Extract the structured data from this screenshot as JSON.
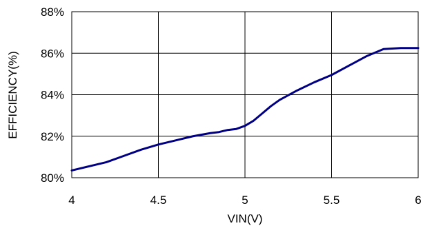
{
  "chart_data": {
    "type": "line",
    "title": "",
    "xlabel": "VIN(V)",
    "ylabel": "EFFICIENCY(%)",
    "xlim": [
      4,
      6
    ],
    "ylim": [
      80,
      88
    ],
    "x_ticks": [
      "4",
      "4.5",
      "5",
      "5.5",
      "6"
    ],
    "y_ticks": [
      "80%",
      "82%",
      "84%",
      "86%",
      "88%"
    ],
    "x_tick_values": [
      4,
      4.5,
      5,
      5.5,
      6
    ],
    "y_tick_values": [
      80,
      82,
      84,
      86,
      88
    ],
    "grid": true,
    "legend": "none",
    "line_color": "#000080",
    "series": [
      {
        "x": [
          4.0,
          4.1,
          4.2,
          4.3,
          4.4,
          4.5,
          4.6,
          4.7,
          4.8,
          4.85,
          4.9,
          4.95,
          5.0,
          5.05,
          5.1,
          5.15,
          5.2,
          5.3,
          5.4,
          5.5,
          5.6,
          5.7,
          5.8,
          5.9,
          6.0
        ],
        "values": [
          80.35,
          80.55,
          80.75,
          81.05,
          81.35,
          81.6,
          81.8,
          82.0,
          82.15,
          82.2,
          82.3,
          82.35,
          82.5,
          82.75,
          83.1,
          83.45,
          83.75,
          84.2,
          84.6,
          84.95,
          85.4,
          85.85,
          86.2,
          86.25,
          86.25
        ]
      }
    ]
  }
}
